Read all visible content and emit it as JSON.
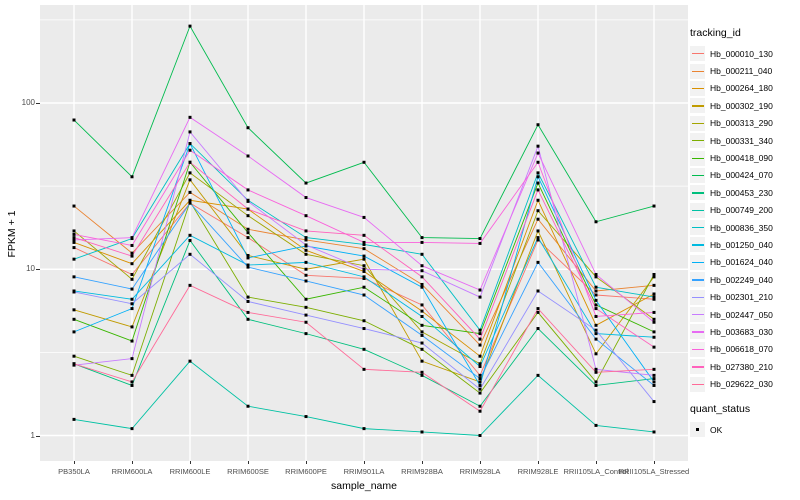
{
  "figure": {
    "background": "#FFFFFF",
    "panel_background": "#EBEBEB",
    "gridline_color": "#FFFFFF",
    "tick_color": "#333333",
    "tick_label_color": "#4D4D4D"
  },
  "chart_data": {
    "type": "line",
    "title": "",
    "xlabel": "sample_name",
    "ylabel": "FPKM + 1",
    "y_scale": "log10",
    "y_ticks": [
      "1",
      "10",
      "100"
    ],
    "y_tick_values": [
      1,
      10,
      100
    ],
    "y_minor_values": [
      3.1623,
      31.623,
      316.23
    ],
    "ylim": [
      0.9,
      380
    ],
    "grid": true,
    "legend_position": "right",
    "point_shape": "filled-square",
    "point_color": "#000000",
    "categories": [
      "PB350LA",
      "RRIM600LA",
      "RRIM600LE",
      "RRIM600SE",
      "RRIM600PE",
      "RRIM901LA",
      "RRIM928BA",
      "RRIM928LA",
      "RRIM928LE",
      "RRII105LA_Control",
      "RRII105LA_Stressed"
    ],
    "series": [
      {
        "name": "Hb_000010_130",
        "color": "#F8766D",
        "values": [
          13.5,
          9.3,
          25.0,
          15.5,
          9.2,
          8.8,
          6.1,
          2.3,
          15.0,
          7.0,
          6.6
        ]
      },
      {
        "name": "Hb_000211_040",
        "color": "#EA8331",
        "values": [
          24.0,
          12.5,
          29.0,
          17.4,
          15.0,
          13.3,
          8.1,
          3.5,
          20.0,
          7.4,
          8.0
        ]
      },
      {
        "name": "Hb_000264_180",
        "color": "#D89000",
        "values": [
          14.5,
          10.8,
          26.0,
          23.0,
          13.0,
          9.7,
          5.6,
          3.0,
          26.0,
          4.6,
          7.1
        ]
      },
      {
        "name": "Hb_000302_190",
        "color": "#C09B00",
        "values": [
          5.7,
          4.5,
          34.5,
          12.1,
          10.0,
          11.5,
          2.8,
          2.1,
          17.0,
          3.1,
          9.0
        ]
      },
      {
        "name": "Hb_000313_290",
        "color": "#A3A500",
        "values": [
          17.0,
          8.7,
          38.0,
          21.0,
          12.3,
          10.5,
          4.2,
          2.7,
          22.5,
          9.0,
          5.0
        ]
      },
      {
        "name": "Hb_000331_340",
        "color": "#7CAE00",
        "values": [
          3.0,
          2.3,
          25.5,
          6.8,
          5.9,
          4.9,
          3.3,
          1.8,
          5.5,
          2.1,
          9.3
        ]
      },
      {
        "name": "Hb_000418_090",
        "color": "#39B600",
        "values": [
          5.0,
          3.7,
          44.0,
          16.6,
          6.6,
          7.8,
          4.6,
          4.1,
          33.0,
          6.1,
          4.2
        ]
      },
      {
        "name": "Hb_000424_070",
        "color": "#00BB4E",
        "values": [
          79.0,
          36.0,
          290.0,
          71.0,
          33.0,
          44.0,
          15.5,
          15.3,
          74.0,
          19.3,
          24.0
        ]
      },
      {
        "name": "Hb_000453_230",
        "color": "#00BF7D",
        "values": [
          2.7,
          2.0,
          14.9,
          5.0,
          4.1,
          3.3,
          2.3,
          1.5,
          4.4,
          2.0,
          2.2
        ]
      },
      {
        "name": "Hb_000749_200",
        "color": "#00C1A3",
        "values": [
          1.25,
          1.1,
          2.8,
          1.5,
          1.3,
          1.1,
          1.05,
          1.0,
          2.3,
          1.15,
          1.05
        ]
      },
      {
        "name": "Hb_000836_350",
        "color": "#00BFC4",
        "values": [
          11.5,
          15.3,
          57.0,
          26.0,
          15.5,
          14.1,
          12.3,
          4.3,
          38.0,
          7.8,
          6.8
        ]
      },
      {
        "name": "Hb_001250_040",
        "color": "#00BAE0",
        "values": [
          7.4,
          6.6,
          16.0,
          10.6,
          11.0,
          9.0,
          5.2,
          2.6,
          15.5,
          4.1,
          3.9
        ]
      },
      {
        "name": "Hb_001624_040",
        "color": "#00B0F6",
        "values": [
          4.2,
          5.8,
          57.0,
          11.7,
          13.8,
          12.0,
          7.8,
          2.0,
          36.0,
          6.5,
          2.1
        ]
      },
      {
        "name": "Hb_002249_040",
        "color": "#35A2FF",
        "values": [
          9.0,
          7.6,
          25.0,
          10.3,
          8.5,
          7.0,
          4.0,
          2.2,
          11.0,
          3.8,
          2.0
        ]
      },
      {
        "name": "Hb_002301_210",
        "color": "#9590FF",
        "values": [
          7.3,
          6.2,
          12.3,
          6.4,
          5.3,
          4.4,
          3.6,
          1.9,
          7.4,
          4.3,
          1.6
        ]
      },
      {
        "name": "Hb_002447_050",
        "color": "#C77CFF",
        "values": [
          2.65,
          2.9,
          67.0,
          25.6,
          14.0,
          10.0,
          9.8,
          6.8,
          55.0,
          2.5,
          2.3
        ]
      },
      {
        "name": "Hb_003683_030",
        "color": "#E76BF3",
        "values": [
          15.0,
          15.5,
          82.0,
          48.0,
          27.0,
          20.5,
          10.5,
          7.5,
          50.0,
          9.3,
          4.8
        ]
      },
      {
        "name": "Hb_006618_070",
        "color": "#FA62DB",
        "values": [
          16.2,
          13.9,
          52.0,
          30.0,
          21.0,
          14.5,
          14.5,
          14.3,
          44.0,
          5.2,
          5.5
        ]
      },
      {
        "name": "Hb_027380_210",
        "color": "#FF62BC",
        "values": [
          15.5,
          12.0,
          44.0,
          23.0,
          17.0,
          16.0,
          9.0,
          3.8,
          30.0,
          5.8,
          3.4
        ]
      },
      {
        "name": "Hb_029622_030",
        "color": "#FF6A98",
        "values": [
          2.7,
          2.1,
          8.0,
          5.5,
          4.8,
          2.5,
          2.4,
          1.4,
          5.8,
          2.4,
          2.5
        ]
      }
    ]
  },
  "legend": {
    "tracking": {
      "title": "tracking_id"
    },
    "quant": {
      "title": "quant_status",
      "items": [
        {
          "label": "OK"
        }
      ]
    }
  }
}
